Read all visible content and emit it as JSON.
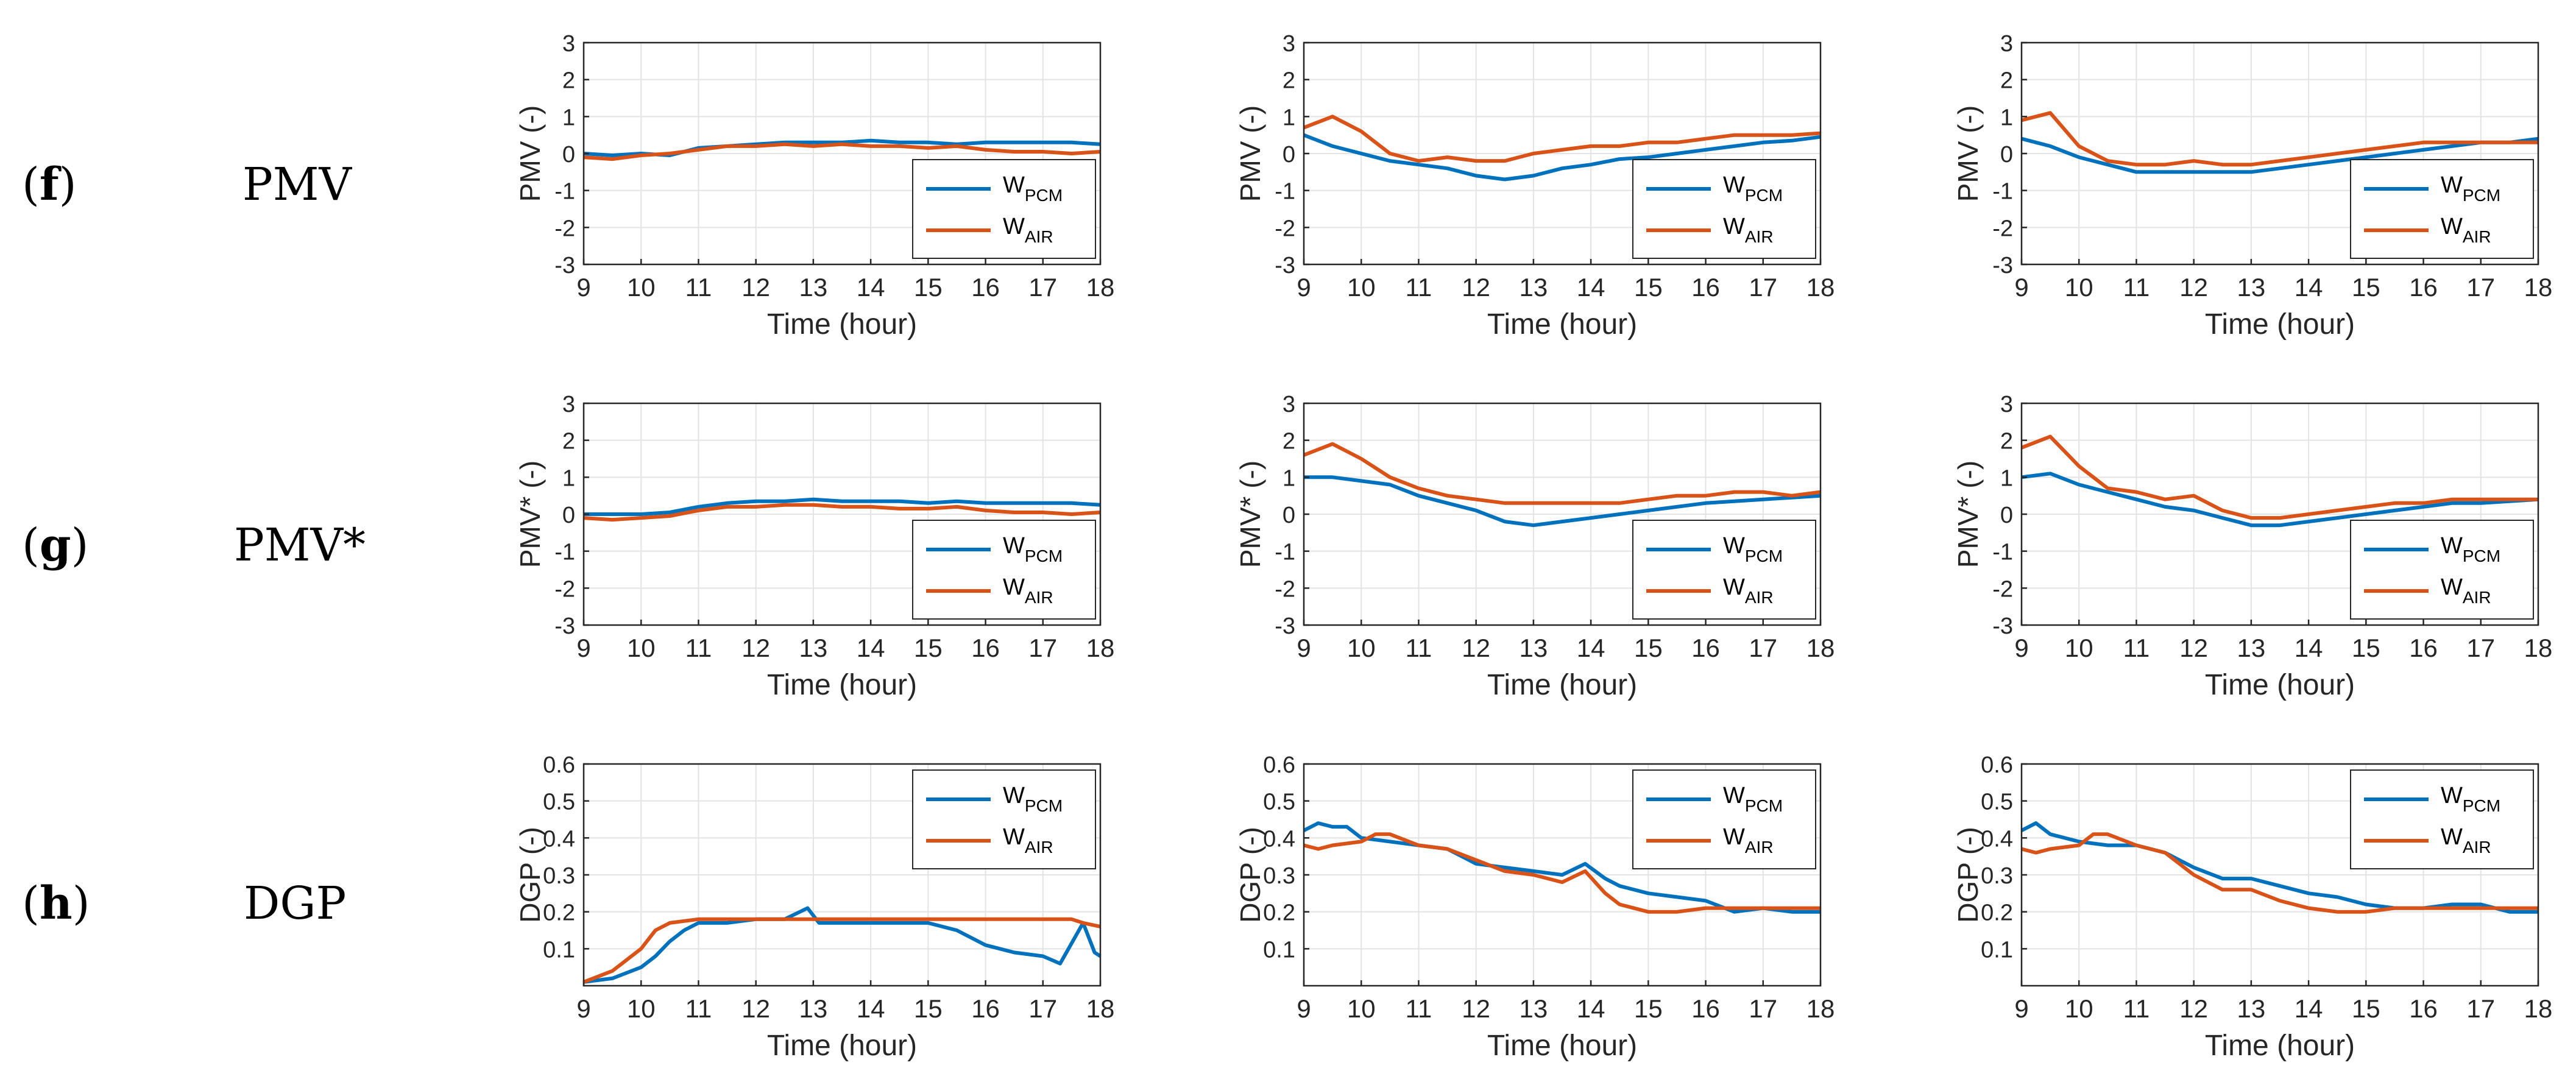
{
  "colors": {
    "pcm": "#0072BD",
    "air": "#D95319",
    "grid": "#e3e3e3",
    "axis": "#262626"
  },
  "rows": [
    {
      "letter": "f",
      "name": "PMV"
    },
    {
      "letter": "g",
      "name": "PMV*"
    },
    {
      "letter": "h",
      "name": "DGP"
    }
  ],
  "legend": {
    "pcm_main": "W",
    "pcm_sub": "PCM",
    "air_main": "W",
    "air_sub": "AIR"
  },
  "chart_data": [
    {
      "id": "f1",
      "row": 0,
      "col": 0,
      "type": "line",
      "xlabel": "Time (hour)",
      "ylabel": "PMV (-)",
      "xlim": [
        9,
        18
      ],
      "ylim": [
        -3,
        3
      ],
      "xticks": [
        9,
        10,
        11,
        12,
        13,
        14,
        15,
        16,
        17,
        18
      ],
      "yticks": [
        -3,
        -2,
        -1,
        0,
        1,
        2,
        3
      ],
      "legend_pos": "bottom-right",
      "series": [
        {
          "name": "W_PCM",
          "x": [
            9,
            9.5,
            10,
            10.5,
            11,
            11.5,
            12,
            12.5,
            13,
            13.5,
            14,
            14.5,
            15,
            15.5,
            16,
            16.5,
            17,
            17.5,
            18
          ],
          "values": [
            0.0,
            -0.05,
            0.0,
            -0.05,
            0.15,
            0.2,
            0.25,
            0.3,
            0.3,
            0.3,
            0.35,
            0.3,
            0.3,
            0.25,
            0.3,
            0.3,
            0.3,
            0.3,
            0.25
          ]
        },
        {
          "name": "W_AIR",
          "x": [
            9,
            9.5,
            10,
            10.5,
            11,
            11.5,
            12,
            12.5,
            13,
            13.5,
            14,
            14.5,
            15,
            15.5,
            16,
            16.5,
            17,
            17.5,
            18
          ],
          "values": [
            -0.1,
            -0.15,
            -0.05,
            0.0,
            0.1,
            0.2,
            0.2,
            0.25,
            0.2,
            0.25,
            0.2,
            0.2,
            0.15,
            0.2,
            0.1,
            0.05,
            0.05,
            0.0,
            0.05
          ]
        }
      ]
    },
    {
      "id": "f2",
      "row": 0,
      "col": 1,
      "type": "line",
      "xlabel": "Time (hour)",
      "ylabel": "PMV (-)",
      "xlim": [
        9,
        18
      ],
      "ylim": [
        -3,
        3
      ],
      "xticks": [
        9,
        10,
        11,
        12,
        13,
        14,
        15,
        16,
        17,
        18
      ],
      "yticks": [
        -3,
        -2,
        -1,
        0,
        1,
        2,
        3
      ],
      "legend_pos": "bottom-right",
      "series": [
        {
          "name": "W_PCM",
          "x": [
            9,
            9.5,
            10,
            10.5,
            11,
            11.5,
            12,
            12.5,
            13,
            13.5,
            14,
            14.5,
            15,
            15.5,
            16,
            16.5,
            17,
            17.5,
            18
          ],
          "values": [
            0.5,
            0.2,
            0.0,
            -0.2,
            -0.3,
            -0.4,
            -0.6,
            -0.7,
            -0.6,
            -0.4,
            -0.3,
            -0.15,
            -0.1,
            0.0,
            0.1,
            0.2,
            0.3,
            0.35,
            0.45
          ]
        },
        {
          "name": "W_AIR",
          "x": [
            9,
            9.5,
            10,
            10.5,
            11,
            11.5,
            12,
            12.5,
            13,
            13.5,
            14,
            14.5,
            15,
            15.5,
            16,
            16.5,
            17,
            17.5,
            18
          ],
          "values": [
            0.7,
            1.0,
            0.6,
            0.0,
            -0.2,
            -0.1,
            -0.2,
            -0.2,
            0.0,
            0.1,
            0.2,
            0.2,
            0.3,
            0.3,
            0.4,
            0.5,
            0.5,
            0.5,
            0.55
          ]
        }
      ]
    },
    {
      "id": "f3",
      "row": 0,
      "col": 2,
      "type": "line",
      "xlabel": "Time (hour)",
      "ylabel": "PMV (-)",
      "xlim": [
        9,
        18
      ],
      "ylim": [
        -3,
        3
      ],
      "xticks": [
        9,
        10,
        11,
        12,
        13,
        14,
        15,
        16,
        17,
        18
      ],
      "yticks": [
        -3,
        -2,
        -1,
        0,
        1,
        2,
        3
      ],
      "legend_pos": "bottom-right",
      "series": [
        {
          "name": "W_PCM",
          "x": [
            9,
            9.5,
            10,
            10.5,
            11,
            11.5,
            12,
            12.5,
            13,
            13.5,
            14,
            14.5,
            15,
            15.5,
            16,
            16.5,
            17,
            17.5,
            18
          ],
          "values": [
            0.4,
            0.2,
            -0.1,
            -0.3,
            -0.5,
            -0.5,
            -0.5,
            -0.5,
            -0.5,
            -0.4,
            -0.3,
            -0.2,
            -0.1,
            0.0,
            0.1,
            0.2,
            0.3,
            0.3,
            0.4
          ]
        },
        {
          "name": "W_AIR",
          "x": [
            9,
            9.5,
            10,
            10.5,
            11,
            11.5,
            12,
            12.5,
            13,
            13.5,
            14,
            14.5,
            15,
            15.5,
            16,
            16.5,
            17,
            17.5,
            18
          ],
          "values": [
            0.9,
            1.1,
            0.2,
            -0.2,
            -0.3,
            -0.3,
            -0.2,
            -0.3,
            -0.3,
            -0.2,
            -0.1,
            0.0,
            0.1,
            0.2,
            0.3,
            0.3,
            0.3,
            0.3,
            0.3
          ]
        }
      ]
    },
    {
      "id": "g1",
      "row": 1,
      "col": 0,
      "type": "line",
      "xlabel": "Time (hour)",
      "ylabel": "PMV* (-)",
      "xlim": [
        9,
        18
      ],
      "ylim": [
        -3,
        3
      ],
      "xticks": [
        9,
        10,
        11,
        12,
        13,
        14,
        15,
        16,
        17,
        18
      ],
      "yticks": [
        -3,
        -2,
        -1,
        0,
        1,
        2,
        3
      ],
      "legend_pos": "bottom-right",
      "series": [
        {
          "name": "W_PCM",
          "x": [
            9,
            9.5,
            10,
            10.5,
            11,
            11.5,
            12,
            12.5,
            13,
            13.5,
            14,
            14.5,
            15,
            15.5,
            16,
            16.5,
            17,
            17.5,
            18
          ],
          "values": [
            0.0,
            0.0,
            0.0,
            0.05,
            0.2,
            0.3,
            0.35,
            0.35,
            0.4,
            0.35,
            0.35,
            0.35,
            0.3,
            0.35,
            0.3,
            0.3,
            0.3,
            0.3,
            0.25
          ]
        },
        {
          "name": "W_AIR",
          "x": [
            9,
            9.5,
            10,
            10.5,
            11,
            11.5,
            12,
            12.5,
            13,
            13.5,
            14,
            14.5,
            15,
            15.5,
            16,
            16.5,
            17,
            17.5,
            18
          ],
          "values": [
            -0.1,
            -0.15,
            -0.1,
            -0.05,
            0.1,
            0.2,
            0.2,
            0.25,
            0.25,
            0.2,
            0.2,
            0.15,
            0.15,
            0.2,
            0.1,
            0.05,
            0.05,
            0.0,
            0.05
          ]
        }
      ]
    },
    {
      "id": "g2",
      "row": 1,
      "col": 1,
      "type": "line",
      "xlabel": "Time (hour)",
      "ylabel": "PMV* (-)",
      "xlim": [
        9,
        18
      ],
      "ylim": [
        -3,
        3
      ],
      "xticks": [
        9,
        10,
        11,
        12,
        13,
        14,
        15,
        16,
        17,
        18
      ],
      "yticks": [
        -3,
        -2,
        -1,
        0,
        1,
        2,
        3
      ],
      "legend_pos": "bottom-right",
      "series": [
        {
          "name": "W_PCM",
          "x": [
            9,
            9.5,
            10,
            10.5,
            11,
            11.5,
            12,
            12.5,
            13,
            13.5,
            14,
            14.5,
            15,
            15.5,
            16,
            16.5,
            17,
            17.5,
            18
          ],
          "values": [
            1.0,
            1.0,
            0.9,
            0.8,
            0.5,
            0.3,
            0.1,
            -0.2,
            -0.3,
            -0.2,
            -0.1,
            0.0,
            0.1,
            0.2,
            0.3,
            0.35,
            0.4,
            0.45,
            0.5
          ]
        },
        {
          "name": "W_AIR",
          "x": [
            9,
            9.5,
            10,
            10.5,
            11,
            11.5,
            12,
            12.5,
            13,
            13.5,
            14,
            14.5,
            15,
            15.5,
            16,
            16.5,
            17,
            17.5,
            18
          ],
          "values": [
            1.6,
            1.9,
            1.5,
            1.0,
            0.7,
            0.5,
            0.4,
            0.3,
            0.3,
            0.3,
            0.3,
            0.3,
            0.4,
            0.5,
            0.5,
            0.6,
            0.6,
            0.5,
            0.6
          ]
        }
      ]
    },
    {
      "id": "g3",
      "row": 1,
      "col": 2,
      "type": "line",
      "xlabel": "Time (hour)",
      "ylabel": "PMV* (-)",
      "xlim": [
        9,
        18
      ],
      "ylim": [
        -3,
        3
      ],
      "xticks": [
        9,
        10,
        11,
        12,
        13,
        14,
        15,
        16,
        17,
        18
      ],
      "yticks": [
        -3,
        -2,
        -1,
        0,
        1,
        2,
        3
      ],
      "legend_pos": "bottom-right",
      "series": [
        {
          "name": "W_PCM",
          "x": [
            9,
            9.5,
            10,
            10.5,
            11,
            11.5,
            12,
            12.5,
            13,
            13.5,
            14,
            14.5,
            15,
            15.5,
            16,
            16.5,
            17,
            17.5,
            18
          ],
          "values": [
            1.0,
            1.1,
            0.8,
            0.6,
            0.4,
            0.2,
            0.1,
            -0.1,
            -0.3,
            -0.3,
            -0.2,
            -0.1,
            0.0,
            0.1,
            0.2,
            0.3,
            0.3,
            0.35,
            0.4
          ]
        },
        {
          "name": "W_AIR",
          "x": [
            9,
            9.5,
            10,
            10.5,
            11,
            11.5,
            12,
            12.5,
            13,
            13.5,
            14,
            14.5,
            15,
            15.5,
            16,
            16.5,
            17,
            17.5,
            18
          ],
          "values": [
            1.8,
            2.1,
            1.3,
            0.7,
            0.6,
            0.4,
            0.5,
            0.1,
            -0.1,
            -0.1,
            0.0,
            0.1,
            0.2,
            0.3,
            0.3,
            0.4,
            0.4,
            0.4,
            0.4
          ]
        }
      ]
    },
    {
      "id": "h1",
      "row": 2,
      "col": 0,
      "type": "line",
      "xlabel": "Time (hour)",
      "ylabel": "DGP (-)",
      "xlim": [
        9,
        18
      ],
      "ylim": [
        0,
        0.6
      ],
      "xticks": [
        9,
        10,
        11,
        12,
        13,
        14,
        15,
        16,
        17,
        18
      ],
      "yticks": [
        0.1,
        0.2,
        0.3,
        0.4,
        0.5,
        0.6
      ],
      "legend_pos": "top-right",
      "series": [
        {
          "name": "W_PCM",
          "x": [
            9,
            9.5,
            10,
            10.25,
            10.5,
            10.75,
            11,
            11.5,
            12,
            12.5,
            12.9,
            13.1,
            13.5,
            14,
            14.5,
            15,
            15.5,
            16,
            16.5,
            17,
            17.3,
            17.7,
            17.9,
            18
          ],
          "values": [
            0.01,
            0.02,
            0.05,
            0.08,
            0.12,
            0.15,
            0.17,
            0.17,
            0.18,
            0.18,
            0.21,
            0.17,
            0.17,
            0.17,
            0.17,
            0.17,
            0.15,
            0.11,
            0.09,
            0.08,
            0.06,
            0.17,
            0.09,
            0.08
          ]
        },
        {
          "name": "W_AIR",
          "x": [
            9,
            9.5,
            10,
            10.25,
            10.5,
            11,
            11.5,
            12,
            12.5,
            13,
            13.5,
            14,
            14.5,
            15,
            15.5,
            16,
            16.5,
            17,
            17.5,
            17.7,
            18
          ],
          "values": [
            0.01,
            0.04,
            0.1,
            0.15,
            0.17,
            0.18,
            0.18,
            0.18,
            0.18,
            0.18,
            0.18,
            0.18,
            0.18,
            0.18,
            0.18,
            0.18,
            0.18,
            0.18,
            0.18,
            0.17,
            0.16
          ]
        }
      ]
    },
    {
      "id": "h2",
      "row": 2,
      "col": 1,
      "type": "line",
      "xlabel": "Time (hour)",
      "ylabel": "DGP (-)",
      "xlim": [
        9,
        18
      ],
      "ylim": [
        0,
        0.6
      ],
      "xticks": [
        9,
        10,
        11,
        12,
        13,
        14,
        15,
        16,
        17,
        18
      ],
      "yticks": [
        0.1,
        0.2,
        0.3,
        0.4,
        0.5,
        0.6
      ],
      "legend_pos": "top-right",
      "series": [
        {
          "name": "W_PCM",
          "x": [
            9,
            9.25,
            9.5,
            9.75,
            10,
            10.5,
            11,
            11.5,
            12,
            12.5,
            13,
            13.5,
            13.9,
            14.25,
            14.5,
            15,
            15.5,
            16,
            16.5,
            17,
            17.5,
            18
          ],
          "values": [
            0.42,
            0.44,
            0.43,
            0.43,
            0.4,
            0.39,
            0.38,
            0.37,
            0.33,
            0.32,
            0.31,
            0.3,
            0.33,
            0.29,
            0.27,
            0.25,
            0.24,
            0.23,
            0.2,
            0.21,
            0.2,
            0.2
          ]
        },
        {
          "name": "W_AIR",
          "x": [
            9,
            9.25,
            9.5,
            10,
            10.25,
            10.5,
            11,
            11.5,
            12,
            12.5,
            13,
            13.5,
            13.9,
            14.25,
            14.5,
            15,
            15.5,
            16,
            16.5,
            17,
            17.5,
            18
          ],
          "values": [
            0.38,
            0.37,
            0.38,
            0.39,
            0.41,
            0.41,
            0.38,
            0.37,
            0.34,
            0.31,
            0.3,
            0.28,
            0.31,
            0.25,
            0.22,
            0.2,
            0.2,
            0.21,
            0.21,
            0.21,
            0.21,
            0.21
          ]
        }
      ]
    },
    {
      "id": "h3",
      "row": 2,
      "col": 2,
      "type": "line",
      "xlabel": "Time (hour)",
      "ylabel": "DGP (-)",
      "xlim": [
        9,
        18
      ],
      "ylim": [
        0,
        0.6
      ],
      "xticks": [
        9,
        10,
        11,
        12,
        13,
        14,
        15,
        16,
        17,
        18
      ],
      "yticks": [
        0.1,
        0.2,
        0.3,
        0.4,
        0.5,
        0.6
      ],
      "legend_pos": "top-right",
      "series": [
        {
          "name": "W_PCM",
          "x": [
            9,
            9.25,
            9.5,
            10,
            10.5,
            11,
            11.5,
            12,
            12.5,
            13,
            13.5,
            14,
            14.5,
            15,
            15.5,
            16,
            16.5,
            17,
            17.5,
            18
          ],
          "values": [
            0.42,
            0.44,
            0.41,
            0.39,
            0.38,
            0.38,
            0.36,
            0.32,
            0.29,
            0.29,
            0.27,
            0.25,
            0.24,
            0.22,
            0.21,
            0.21,
            0.22,
            0.22,
            0.2,
            0.2
          ]
        },
        {
          "name": "W_AIR",
          "x": [
            9,
            9.25,
            9.5,
            10,
            10.25,
            10.5,
            11,
            11.5,
            12,
            12.5,
            13,
            13.5,
            14,
            14.5,
            15,
            15.5,
            16,
            16.5,
            17,
            17.5,
            18
          ],
          "values": [
            0.37,
            0.36,
            0.37,
            0.38,
            0.41,
            0.41,
            0.38,
            0.36,
            0.3,
            0.26,
            0.26,
            0.23,
            0.21,
            0.2,
            0.2,
            0.21,
            0.21,
            0.21,
            0.21,
            0.21,
            0.21
          ]
        }
      ]
    }
  ]
}
